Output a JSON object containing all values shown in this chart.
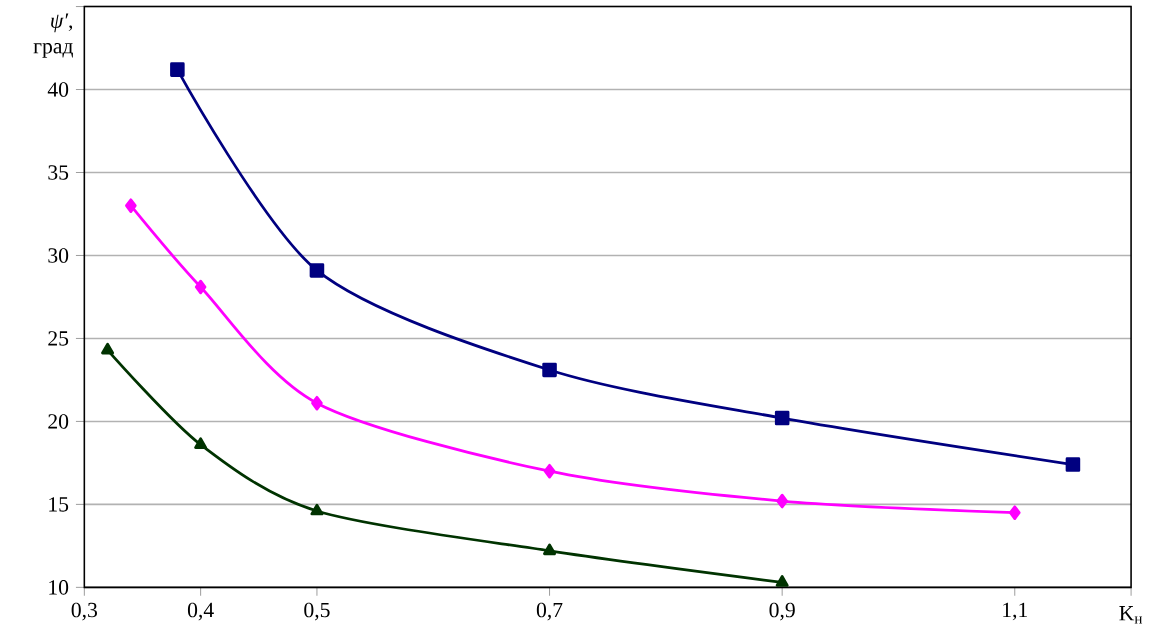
{
  "chart_data": {
    "type": "line",
    "ylabel": "*ψ′*, град",
    "xlabel": "K$_{н}$",
    "xlim": [
      0.3,
      1.2
    ],
    "ylim": [
      10,
      45
    ],
    "xticks": [
      {
        "value": 0.3,
        "label": "0,3"
      },
      {
        "value": 0.4,
        "label": "0,4"
      },
      {
        "value": 0.5,
        "label": "0,5"
      },
      {
        "value": 0.7,
        "label": "0,7"
      },
      {
        "value": 0.9,
        "label": "0,9"
      },
      {
        "value": 1.1,
        "label": "1,1"
      },
      {
        "value": 1.2,
        "label": null
      }
    ],
    "yticks": [
      10,
      15,
      20,
      25,
      30,
      35,
      40,
      {
        "value": 45,
        "label": null
      }
    ],
    "grid": "y",
    "line_style": "solid",
    "series": [
      {
        "color": "#000080",
        "marker": "square",
        "x": [
          0.38,
          0.5,
          0.7,
          0.9,
          1.15
        ],
        "values": [
          41.2,
          29.1,
          23.1,
          20.2,
          17.4
        ]
      },
      {
        "color": "#ff00ff",
        "marker": "diamond",
        "x": [
          0.34,
          0.4,
          0.5,
          0.7,
          0.9,
          1.1
        ],
        "values": [
          33.0,
          28.1,
          21.1,
          17.0,
          15.2,
          14.5
        ]
      },
      {
        "color": "#003300",
        "marker": "triangle",
        "x": [
          0.32,
          0.4,
          0.5,
          0.7,
          0.9
        ],
        "values": [
          24.3,
          18.6,
          14.6,
          12.2,
          10.3
        ]
      }
    ]
  }
}
